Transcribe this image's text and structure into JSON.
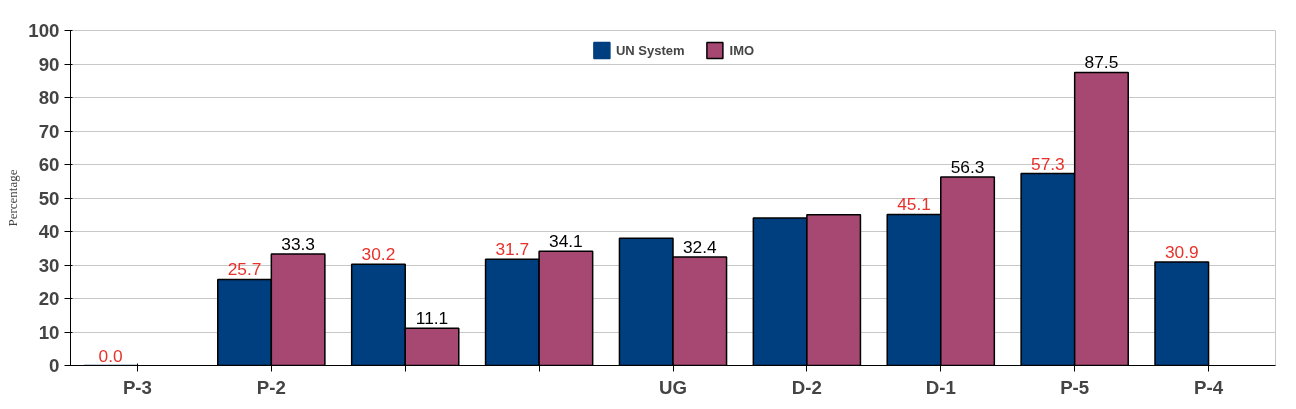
{
  "chart_data": {
    "type": "bar",
    "ylabel": "Percentage",
    "categories": [
      "P-3",
      "P-2",
      null,
      null,
      "UG",
      "D-2",
      "D-1",
      "P-5",
      "P-4"
    ],
    "series": [
      {
        "name": "UN System",
        "color": "#003f7f",
        "values": [
          0.0,
          25.7,
          30.2,
          31.7,
          38,
          44,
          45.1,
          57.3,
          30.9
        ],
        "value_labels": [
          "0.0",
          "25.7",
          "30.2",
          "31.7",
          null,
          null,
          "45.1",
          "57.3",
          "30.9"
        ]
      },
      {
        "name": "IMO",
        "color": "#a64872",
        "values": [
          null,
          33.3,
          11.1,
          34.1,
          32.4,
          45,
          56.3,
          87.5,
          null
        ],
        "value_labels": [
          null,
          "33.3",
          "11.1",
          "34.1",
          "32.4",
          null,
          "56.3",
          "87.5",
          null
        ]
      }
    ],
    "ylim": [
      0,
      100
    ],
    "yticks": [
      0,
      10,
      20,
      30,
      40,
      50,
      60,
      70,
      80,
      90,
      100
    ],
    "grid": "y",
    "legend": "top"
  }
}
